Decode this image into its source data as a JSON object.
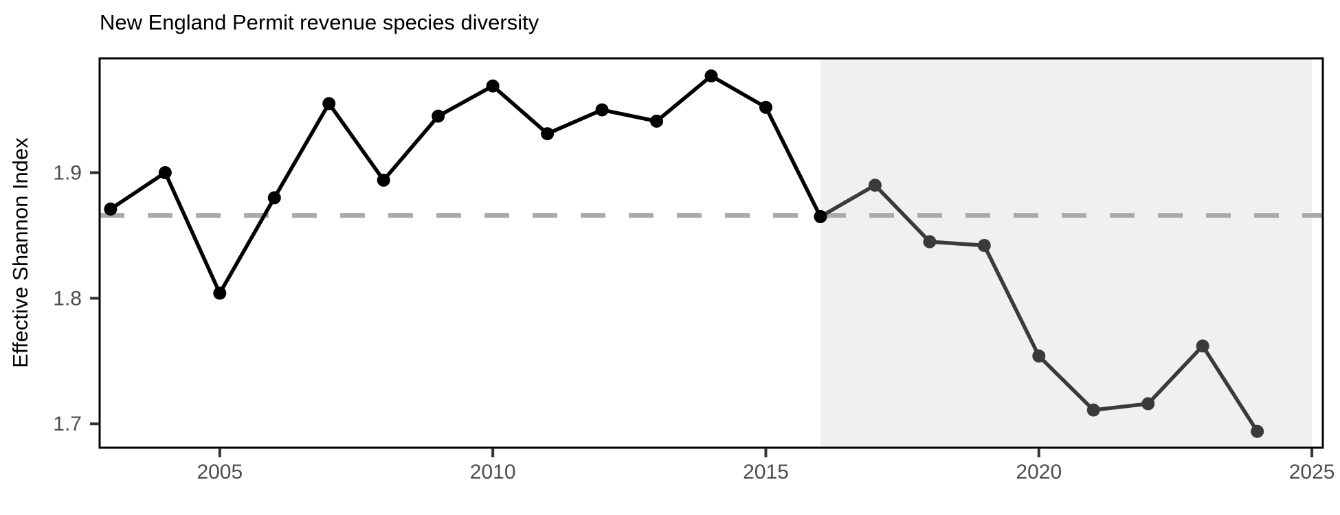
{
  "page": {
    "title": "New England Permit revenue species diversity"
  },
  "chart_data": {
    "type": "line",
    "title": "New England Permit revenue species diversity",
    "xlabel": "",
    "ylabel": "Effective Shannon Index",
    "x": [
      2003,
      2004,
      2005,
      2006,
      2007,
      2008,
      2009,
      2010,
      2011,
      2012,
      2013,
      2014,
      2015,
      2016,
      2017,
      2018,
      2019,
      2020,
      2021,
      2022,
      2023,
      2024
    ],
    "values": [
      1.871,
      1.9,
      1.804,
      1.88,
      1.955,
      1.894,
      1.945,
      1.969,
      1.931,
      1.95,
      1.941,
      1.977,
      1.952,
      1.865,
      1.89,
      1.845,
      1.842,
      1.754,
      1.711,
      1.716,
      1.762,
      1.694
    ],
    "split_year": 2016,
    "series": [
      {
        "name": "pre-2016 segment",
        "color": "#000000",
        "x_range": [
          2003,
          2016
        ]
      },
      {
        "name": "2016-onward segment",
        "color": "#3a3a3a",
        "x_range": [
          2016,
          2024
        ]
      }
    ],
    "reference_line": {
      "value": 1.866,
      "style": "dashed",
      "color": "#aaaaaa"
    },
    "shaded_region": {
      "x_start": 2016,
      "x_end": 2025,
      "color": "#f0f0f0"
    },
    "xlim": [
      2002.8,
      2025.2
    ],
    "ylim": [
      1.681,
      1.991
    ],
    "xticks": [
      2005,
      2010,
      2015,
      2020,
      2025
    ],
    "yticks": [
      1.7,
      1.8,
      1.9
    ],
    "grid": false,
    "legend": "none",
    "colors": {
      "axis_text": "#4d4d4d",
      "axis_title": "#000000",
      "tick_mark": "#333333",
      "panel_border": "#000000",
      "background": "#ffffff"
    }
  }
}
